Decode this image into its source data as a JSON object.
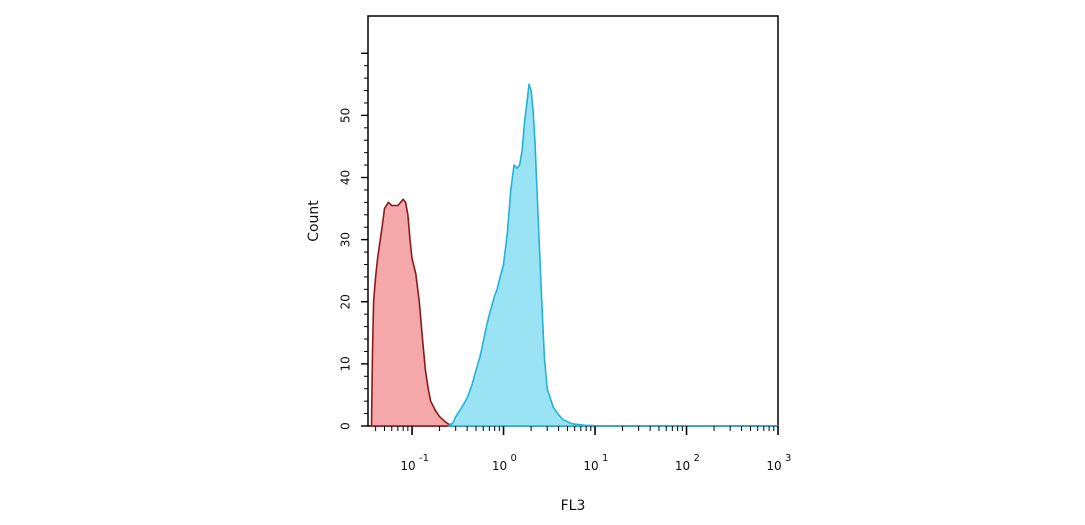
{
  "chart_data": {
    "type": "area",
    "xlabel": "FL3",
    "ylabel": "Count",
    "x_scale": "log",
    "xlim": [
      0.033,
      1000
    ],
    "ylim": [
      0,
      66
    ],
    "x_ticks": [
      {
        "value": 0.1,
        "base": "10",
        "exp": "-1"
      },
      {
        "value": 1,
        "base": "10",
        "exp": "0"
      },
      {
        "value": 10,
        "base": "10",
        "exp": "1"
      },
      {
        "value": 100,
        "base": "10",
        "exp": "2"
      },
      {
        "value": 1000,
        "base": "10",
        "exp": "3"
      }
    ],
    "y_ticks": [
      {
        "value": 0,
        "label": "0"
      },
      {
        "value": 10,
        "label": "10"
      },
      {
        "value": 20,
        "label": "20"
      },
      {
        "value": 30,
        "label": "30"
      },
      {
        "value": 40,
        "label": "40"
      },
      {
        "value": 50,
        "label": "50"
      }
    ],
    "grid": false,
    "series": [
      {
        "color": "#f4a3a5",
        "stroke": "#8b1a1a",
        "x": [
          0.036,
          0.037,
          0.038,
          0.04,
          0.042,
          0.045,
          0.048,
          0.05,
          0.055,
          0.06,
          0.065,
          0.07,
          0.075,
          0.08,
          0.085,
          0.09,
          0.095,
          0.1,
          0.11,
          0.12,
          0.13,
          0.14,
          0.15,
          0.16,
          0.18,
          0.2,
          0.23,
          0.25,
          0.3
        ],
        "y": [
          0,
          12,
          20,
          24,
          27,
          30,
          33,
          35,
          36,
          35.5,
          35.5,
          35.5,
          36,
          36.5,
          36,
          34,
          30,
          27,
          24.5,
          20,
          14,
          9,
          6,
          4,
          2.5,
          1.5,
          0.7,
          0.3,
          0
        ]
      },
      {
        "color": "#93e2f4",
        "stroke": "#26b2d6",
        "x": [
          0.25,
          0.28,
          0.3,
          0.35,
          0.4,
          0.45,
          0.5,
          0.55,
          0.6,
          0.65,
          0.7,
          0.75,
          0.8,
          0.85,
          0.9,
          1.0,
          1.1,
          1.2,
          1.3,
          1.4,
          1.5,
          1.6,
          1.7,
          1.8,
          1.9,
          2.0,
          2.1,
          2.2,
          2.4,
          2.6,
          2.8,
          3.0,
          3.5,
          4.0,
          4.5,
          5.0,
          5.5,
          6.0,
          7.0,
          8.0,
          9.0,
          10.0,
          15.0,
          20.0,
          40.0,
          100.0,
          300.0,
          1000.0
        ],
        "y": [
          0,
          0.5,
          1.5,
          3,
          4.5,
          6.5,
          9,
          11,
          13.5,
          16,
          18,
          19.5,
          21,
          22,
          23.5,
          26,
          31,
          38,
          42,
          41.5,
          42,
          44.5,
          49,
          52,
          55,
          54,
          51,
          46,
          33,
          21,
          11,
          6,
          3,
          1.8,
          1,
          0.7,
          0.4,
          0.3,
          0.2,
          0.1,
          0.1,
          0.05,
          0,
          0,
          0,
          0,
          0,
          0
        ]
      }
    ]
  }
}
